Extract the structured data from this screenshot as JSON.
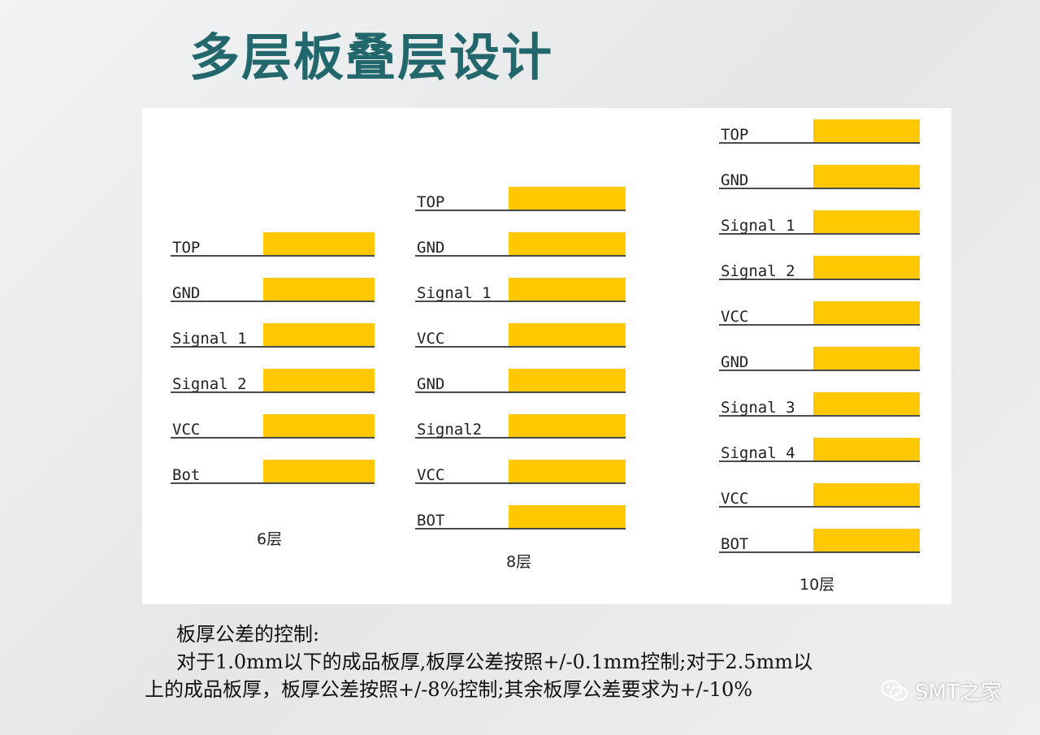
{
  "title": "多层板叠层设计",
  "stacks": [
    {
      "caption": "6层",
      "layers": [
        "TOP",
        "GND",
        "Signal 1",
        "Signal 2",
        "VCC",
        "Bot"
      ]
    },
    {
      "caption": "8层",
      "layers": [
        "TOP",
        "GND",
        "Signal 1",
        "VCC",
        "GND",
        "Signal2",
        "VCC",
        "BOT"
      ]
    },
    {
      "caption": "10层",
      "layers": [
        "TOP",
        "GND",
        "Signal 1",
        "Signal 2",
        "VCC",
        "GND",
        "Signal 3",
        "Signal 4",
        "VCC",
        "BOT"
      ]
    }
  ],
  "notes": {
    "heading": "板厚公差的控制:",
    "line1": "对于1.0mm以下的成品板厚,板厚公差按照+/-0.1mm控制;对于2.5mm以",
    "line2": "上的成品板厚，板厚公差按照+/-8%控制;其余板厚公差要求为+/-10%"
  },
  "watermark": "SMT之家",
  "colors": {
    "title": "#22676c",
    "copper": "#ffc800",
    "line": "#4a4a4a"
  }
}
